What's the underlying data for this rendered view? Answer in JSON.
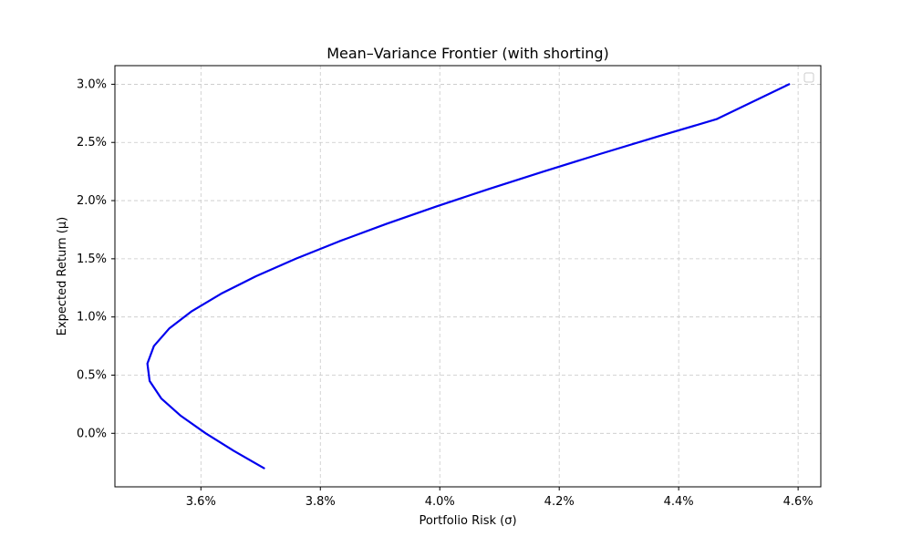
{
  "chart_data": {
    "type": "line",
    "title": "Mean–Variance Frontier (with shorting)",
    "xlabel": "Portfolio Risk (σ)",
    "ylabel": "Expected Return (μ)",
    "xlim": [
      0.03456,
      0.04638
    ],
    "ylim": [
      -0.0046,
      0.0316
    ],
    "x_ticks": [
      0.036,
      0.038,
      0.04,
      0.042,
      0.044,
      0.046
    ],
    "x_tick_labels": [
      "3.6%",
      "3.8%",
      "4.0%",
      "4.2%",
      "4.4%",
      "4.6%"
    ],
    "y_ticks": [
      0.0,
      0.005,
      0.01,
      0.015,
      0.02,
      0.025,
      0.03
    ],
    "y_tick_labels": [
      "0.0%",
      "0.5%",
      "1.0%",
      "1.5%",
      "2.0%",
      "2.5%",
      "3.0%"
    ],
    "grid": true,
    "legend": "top-right",
    "series": [
      {
        "color": "#0000ee",
        "x": [
          0.037057,
          0.036548,
          0.03608,
          0.035664,
          0.035336,
          0.035141,
          0.035104,
          0.035213,
          0.035468,
          0.035849,
          0.036339,
          0.036922,
          0.037586,
          0.038316,
          0.039106,
          0.039944,
          0.040822,
          0.041735,
          0.042678,
          0.043646,
          0.044634,
          0.04585
        ],
        "y": [
          -0.003,
          -0.0015,
          0.0,
          0.0015,
          0.003,
          0.0045,
          0.006,
          0.0075,
          0.009,
          0.0105,
          0.012,
          0.0135,
          0.015,
          0.0165,
          0.018,
          0.0195,
          0.021,
          0.0225,
          0.024,
          0.0255,
          0.027,
          0.03
        ]
      }
    ]
  }
}
